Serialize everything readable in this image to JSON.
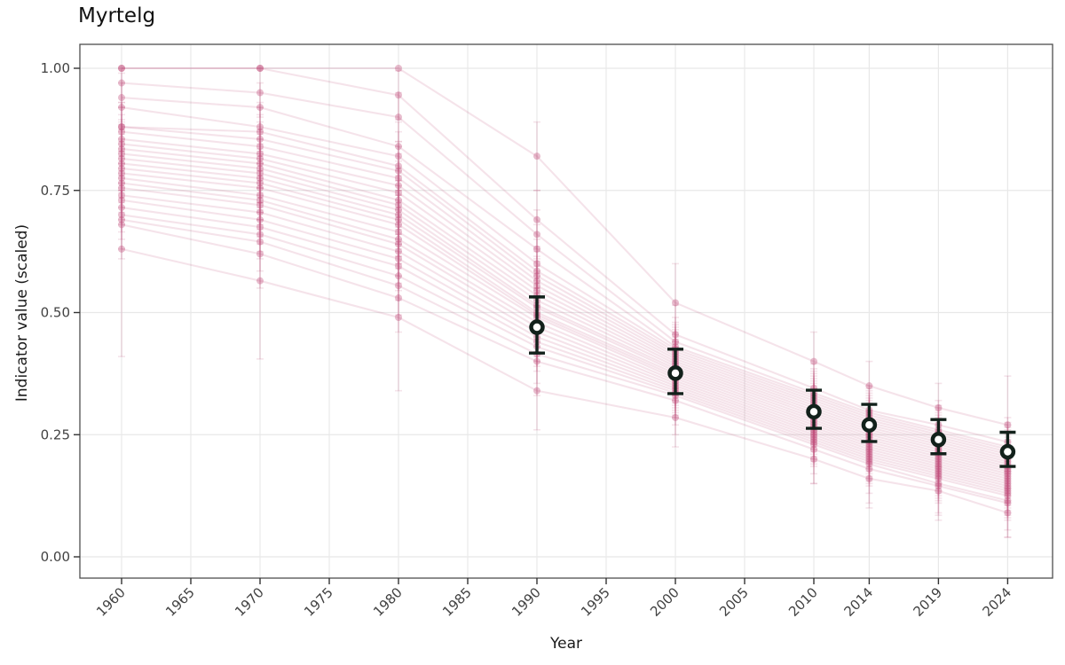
{
  "title": "Myrtelg",
  "axes": {
    "x": {
      "label": "Year",
      "ticks": [
        1960,
        1965,
        1970,
        1975,
        1980,
        1985,
        1990,
        1995,
        2000,
        2005,
        2010,
        2014,
        2019,
        2024
      ]
    },
    "y": {
      "label": "Indicator value (scaled)",
      "tick_values": [
        0,
        0.25,
        0.5,
        0.75,
        1
      ],
      "tick_labels": [
        "0.00",
        "0.25",
        "0.50",
        "0.75",
        "1.00"
      ]
    }
  },
  "colors": {
    "series_pink": "#c2517e",
    "mean_dark": "#12211b",
    "gridline": "#e8e8e8",
    "panel_border": "#4d4d4d",
    "tick_mark": "#333333",
    "tick_label": "#424242",
    "background": "#ffffff"
  },
  "chart_data": {
    "type": "line",
    "title": "Myrtelg",
    "xlabel": "Year",
    "ylabel": "Indicator value (scaled)",
    "xlim": [
      1957,
      2027
    ],
    "ylim": [
      -0.04,
      1.05
    ],
    "grid": "major-only",
    "legend": "none",
    "x": [
      1960,
      1970,
      1980,
      1990,
      2000,
      2010,
      2014,
      2019,
      2024
    ],
    "series": [
      {
        "values": [
          1.0,
          1.0,
          1.0,
          0.82,
          0.52,
          0.4,
          0.35,
          0.305,
          0.27
        ],
        "err": [
          0,
          0,
          0,
          0.07,
          0.08,
          0.06,
          0.05,
          0.05,
          0.1
        ]
      },
      {
        "values": [
          1.0,
          1.0,
          0.945,
          0.69,
          0.455,
          0.345,
          0.3,
          0.27,
          0.235
        ],
        "err": [
          0,
          0,
          0.05,
          0.06,
          0.06,
          0.05,
          0.05,
          0.05,
          0.05
        ]
      },
      {
        "values": [
          0.97,
          0.95,
          0.9,
          0.66,
          0.44,
          0.335,
          0.295,
          0.26,
          0.225
        ],
        "err": 0.05
      },
      {
        "values": [
          0.94,
          0.92,
          0.84,
          0.63,
          0.43,
          0.33,
          0.29,
          0.255,
          0.22
        ],
        "err": 0.05
      },
      {
        "values": [
          0.92,
          0.88,
          0.82,
          0.6,
          0.425,
          0.325,
          0.285,
          0.25,
          0.215
        ],
        "err": 0.05
      },
      {
        "values": [
          0.88,
          0.87,
          0.8,
          0.585,
          0.42,
          0.32,
          0.28,
          0.245,
          0.21
        ],
        "err": 0.05
      },
      {
        "values": [
          0.88,
          0.855,
          0.79,
          0.575,
          0.415,
          0.315,
          0.275,
          0.24,
          0.205
        ],
        "err": 0.05
      },
      {
        "values": [
          0.87,
          0.84,
          0.775,
          0.565,
          0.41,
          0.31,
          0.27,
          0.235,
          0.2
        ],
        "err": 0.05
      },
      {
        "values": [
          0.855,
          0.825,
          0.76,
          0.555,
          0.405,
          0.305,
          0.265,
          0.23,
          0.195
        ],
        "err": 0.05
      },
      {
        "values": [
          0.845,
          0.815,
          0.745,
          0.545,
          0.4,
          0.3,
          0.26,
          0.225,
          0.19
        ],
        "err": 0.05
      },
      {
        "values": [
          0.835,
          0.805,
          0.73,
          0.535,
          0.395,
          0.295,
          0.255,
          0.22,
          0.185
        ],
        "err": 0.05
      },
      {
        "values": [
          0.825,
          0.795,
          0.72,
          0.525,
          0.39,
          0.29,
          0.25,
          0.215,
          0.18
        ],
        "err": 0.05
      },
      {
        "values": [
          0.815,
          0.785,
          0.71,
          0.515,
          0.385,
          0.285,
          0.245,
          0.21,
          0.175
        ],
        "err": 0.05
      },
      {
        "values": [
          0.805,
          0.775,
          0.7,
          0.51,
          0.38,
          0.28,
          0.24,
          0.205,
          0.17
        ],
        "err": 0.05
      },
      {
        "values": [
          0.795,
          0.765,
          0.69,
          0.5,
          0.375,
          0.275,
          0.235,
          0.2,
          0.165
        ],
        "err": 0.05
      },
      {
        "values": [
          0.785,
          0.755,
          0.68,
          0.495,
          0.37,
          0.27,
          0.23,
          0.195,
          0.16
        ],
        "err": 0.05
      },
      {
        "values": [
          0.775,
          0.74,
          0.665,
          0.49,
          0.365,
          0.265,
          0.225,
          0.19,
          0.155
        ],
        "err": 0.05
      },
      {
        "values": [
          0.765,
          0.73,
          0.65,
          0.48,
          0.36,
          0.26,
          0.22,
          0.185,
          0.15
        ],
        "err": 0.05
      },
      {
        "values": [
          0.755,
          0.72,
          0.64,
          0.47,
          0.355,
          0.255,
          0.215,
          0.18,
          0.145
        ],
        "err": 0.05
      },
      {
        "values": [
          0.74,
          0.705,
          0.625,
          0.46,
          0.35,
          0.25,
          0.21,
          0.175,
          0.14
        ],
        "err": 0.05
      },
      {
        "values": [
          0.73,
          0.69,
          0.61,
          0.45,
          0.345,
          0.245,
          0.205,
          0.17,
          0.135
        ],
        "err": 0.05
      },
      {
        "values": [
          0.715,
          0.675,
          0.595,
          0.44,
          0.34,
          0.24,
          0.2,
          0.165,
          0.13
        ],
        "err": 0.05
      },
      {
        "values": [
          0.7,
          0.66,
          0.575,
          0.43,
          0.335,
          0.235,
          0.195,
          0.16,
          0.125
        ],
        "err": 0.05
      },
      {
        "values": [
          0.69,
          0.645,
          0.555,
          0.415,
          0.33,
          0.23,
          0.19,
          0.15,
          0.115
        ],
        "err": 0.06
      },
      {
        "values": [
          0.68,
          0.62,
          0.53,
          0.4,
          0.32,
          0.22,
          0.18,
          0.145,
          0.11
        ],
        "err": 0.07
      },
      {
        "values": [
          0.63,
          0.565,
          0.49,
          0.34,
          0.285,
          0.2,
          0.16,
          0.135,
          0.09
        ],
        "err": [
          0.22,
          0.16,
          0.15,
          0.08,
          0.06,
          0.05,
          0.06,
          0.05,
          0.05
        ]
      }
    ],
    "mean_series": {
      "x": [
        1990,
        2000,
        2010,
        2014,
        2019,
        2024
      ],
      "mean": [
        0.47,
        0.376,
        0.297,
        0.27,
        0.24,
        0.215
      ],
      "ci_low": [
        0.417,
        0.334,
        0.263,
        0.236,
        0.211,
        0.185
      ],
      "ci_high": [
        0.532,
        0.425,
        0.341,
        0.312,
        0.281,
        0.255
      ]
    }
  }
}
